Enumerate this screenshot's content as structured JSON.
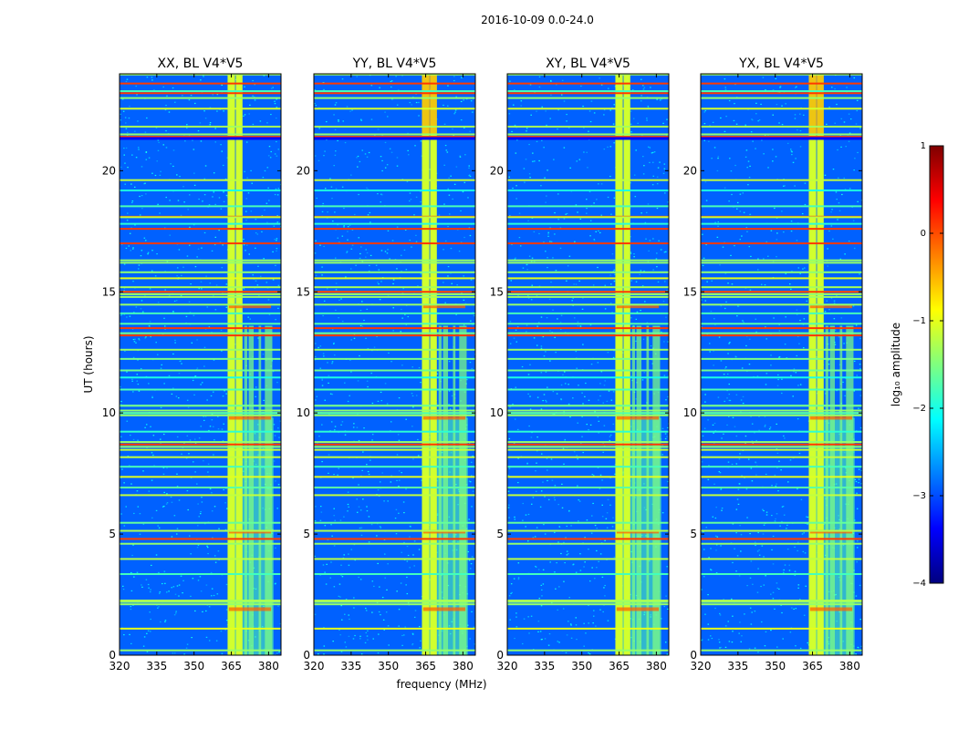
{
  "figure": {
    "suptitle": "2016-10-09 0.0-24.0",
    "xlabel": "frequency (MHz)",
    "ylabel": "UT (hours)"
  },
  "colorbar": {
    "label": "log₁₀ amplitude",
    "range": [
      -4,
      1
    ],
    "ticks": [
      1,
      0,
      -1,
      -2,
      -3,
      -4
    ],
    "tick_labels": [
      "1",
      "0",
      "−1",
      "−2",
      "−3",
      "−4"
    ],
    "colormap": "jet",
    "colors": [
      "#00007f",
      "#0000ff",
      "#007fff",
      "#00ffff",
      "#7fff7f",
      "#ffff00",
      "#ff7f00",
      "#ff0000",
      "#7f0000"
    ]
  },
  "chart_data": [
    {
      "type": "heatmap",
      "title": "XX, BL V4*V5",
      "xlabel": "frequency (MHz)",
      "ylabel": "UT (hours)",
      "xlim": [
        320,
        385
      ],
      "ylim": [
        0,
        24
      ],
      "xticks": [
        320,
        335,
        350,
        365,
        380
      ],
      "yticks": [
        0,
        5,
        10,
        15,
        20
      ],
      "zlim": [
        -4,
        1
      ]
    },
    {
      "type": "heatmap",
      "title": "YY, BL V4*V5",
      "xlabel": "frequency (MHz)",
      "ylabel": "",
      "xlim": [
        320,
        385
      ],
      "ylim": [
        0,
        24
      ],
      "xticks": [
        320,
        335,
        350,
        365,
        380
      ],
      "yticks": [
        0,
        5,
        10,
        15,
        20
      ],
      "zlim": [
        -4,
        1
      ]
    },
    {
      "type": "heatmap",
      "title": "XY, BL V4*V5",
      "xlabel": "frequency (MHz)",
      "ylabel": "",
      "xlim": [
        320,
        385
      ],
      "ylim": [
        0,
        24
      ],
      "xticks": [
        320,
        335,
        350,
        365,
        380
      ],
      "yticks": [
        0,
        5,
        10,
        15,
        20
      ],
      "zlim": [
        -4,
        1
      ]
    },
    {
      "type": "heatmap",
      "title": "YX, BL V4*V5",
      "xlabel": "frequency (MHz)",
      "ylabel": "",
      "xlim": [
        320,
        385
      ],
      "ylim": [
        0,
        24
      ],
      "xticks": [
        320,
        335,
        350,
        365,
        380
      ],
      "yticks": [
        0,
        5,
        10,
        15,
        20
      ],
      "zlim": [
        -4,
        1
      ]
    }
  ]
}
